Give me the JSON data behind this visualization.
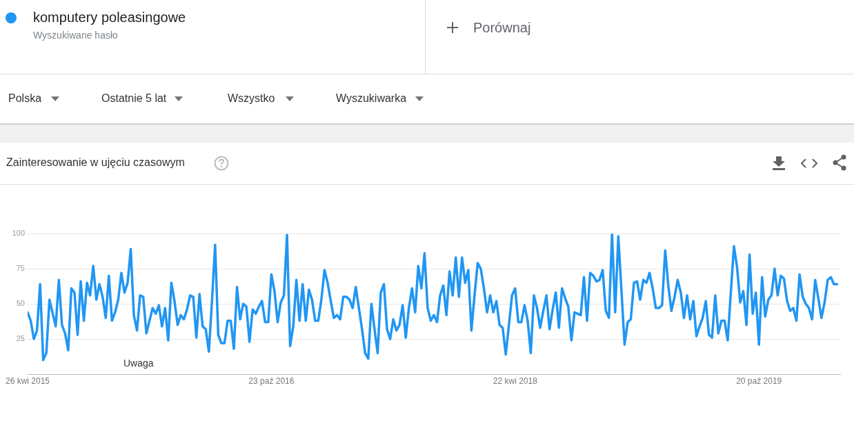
{
  "chart_data": {
    "type": "line",
    "title": "Zainteresowanie w ujęciu czasowym",
    "series": [
      {
        "name": "komputery poleasingowe",
        "color": "#2196f3",
        "x": [
          "2015-04-26",
          "2015-05-03",
          "2015-05-10",
          "2015-05-17",
          "2015-05-24",
          "2015-05-31",
          "2015-06-07",
          "2015-06-14",
          "2015-06-28",
          "2015-07-05",
          "2015-07-12",
          "2015-07-19",
          "2015-07-26",
          "2015-08-02",
          "2015-08-09",
          "2015-08-16",
          "2015-08-23",
          "2015-08-30",
          "2015-09-06",
          "2015-09-13",
          "2015-09-20",
          "2015-09-27",
          "2015-10-04",
          "2015-10-11",
          "2015-10-18",
          "2015-10-25",
          "2015-11-01",
          "2015-11-08",
          "2015-11-15",
          "2015-11-22",
          "2015-11-29",
          "2015-12-06",
          "2015-12-13",
          "2015-12-20",
          "2015-12-27",
          "2016-01-03",
          "2016-01-10",
          "2016-01-17",
          "2016-01-24",
          "2016-01-31",
          "2016-02-07",
          "2016-02-14",
          "2016-02-21",
          "2016-02-28",
          "2016-03-06",
          "2016-03-13",
          "2016-03-20",
          "2016-03-27",
          "2016-04-03",
          "2016-04-10",
          "2016-04-17",
          "2016-04-24",
          "2016-05-01",
          "2016-05-08",
          "2016-05-15",
          "2016-05-22",
          "2016-05-29",
          "2016-06-05",
          "2016-06-12",
          "2016-06-19",
          "2016-06-26",
          "2016-07-03",
          "2016-07-10",
          "2016-07-17",
          "2016-07-24",
          "2016-07-31",
          "2016-08-07",
          "2016-08-14",
          "2016-08-21",
          "2016-08-28",
          "2016-09-04",
          "2016-09-11",
          "2016-09-18",
          "2016-09-25",
          "2016-10-02",
          "2016-10-09",
          "2016-10-16",
          "2016-10-23",
          "2016-10-30",
          "2016-11-06",
          "2016-11-13",
          "2016-11-20",
          "2016-11-27",
          "2016-12-04",
          "2016-12-11",
          "2016-12-18",
          "2016-12-25",
          "2017-01-01",
          "2017-01-08",
          "2017-01-15",
          "2017-01-22",
          "2017-01-29",
          "2017-02-05",
          "2017-02-12",
          "2017-02-19",
          "2017-02-26",
          "2017-03-05",
          "2017-03-12",
          "2017-03-19",
          "2017-03-26",
          "2017-04-02",
          "2017-04-09",
          "2017-04-16",
          "2017-04-23",
          "2017-04-30",
          "2017-05-07",
          "2017-05-14",
          "2017-05-21",
          "2017-05-28",
          "2017-06-04",
          "2017-06-11",
          "2017-06-18",
          "2017-06-25",
          "2017-07-02",
          "2017-07-09",
          "2017-07-16",
          "2017-07-23",
          "2017-07-30",
          "2017-08-06",
          "2017-08-13",
          "2017-08-20",
          "2017-08-27",
          "2017-09-03",
          "2017-09-10",
          "2017-09-17",
          "2017-09-24",
          "2017-10-01",
          "2017-10-08",
          "2017-10-15",
          "2017-10-22",
          "2017-10-29",
          "2017-11-05",
          "2017-11-12",
          "2017-11-19",
          "2017-11-26",
          "2017-12-03",
          "2017-12-10",
          "2017-12-17",
          "2017-12-24",
          "2017-12-31",
          "2018-01-07",
          "2018-01-14",
          "2018-01-21",
          "2018-01-28",
          "2018-02-04",
          "2018-02-11",
          "2018-02-18",
          "2018-02-25",
          "2018-03-04",
          "2018-03-11",
          "2018-03-18",
          "2018-03-25",
          "2018-04-01",
          "2018-04-08",
          "2018-04-15",
          "2018-04-22",
          "2018-04-29",
          "2018-05-06",
          "2018-05-13",
          "2018-05-20",
          "2018-05-27",
          "2018-06-03",
          "2018-06-10",
          "2018-06-17",
          "2018-06-24",
          "2018-07-01",
          "2018-07-08",
          "2018-07-15",
          "2018-07-22",
          "2018-07-29",
          "2018-08-05",
          "2018-08-12",
          "2018-08-19",
          "2018-08-26",
          "2018-09-02",
          "2018-09-09",
          "2018-09-16",
          "2018-09-23",
          "2018-09-30",
          "2018-10-07",
          "2018-10-14",
          "2018-10-21",
          "2018-10-28",
          "2018-11-04",
          "2018-11-11",
          "2018-11-18",
          "2018-11-25",
          "2018-12-02",
          "2018-12-09",
          "2018-12-16",
          "2018-12-23",
          "2018-12-30",
          "2019-01-06",
          "2019-01-13",
          "2019-01-20",
          "2019-01-27",
          "2019-02-03",
          "2019-02-10",
          "2019-02-17",
          "2019-02-24",
          "2019-03-03",
          "2019-03-10",
          "2019-03-17",
          "2019-03-24",
          "2019-03-31",
          "2019-04-07",
          "2019-04-14",
          "2019-04-21",
          "2019-04-28",
          "2019-05-05",
          "2019-05-12",
          "2019-05-19",
          "2019-05-26",
          "2019-06-02",
          "2019-06-09",
          "2019-06-16",
          "2019-06-23",
          "2019-06-30",
          "2019-07-07",
          "2019-07-14",
          "2019-07-21",
          "2019-07-28",
          "2019-08-04",
          "2019-08-11",
          "2019-08-18",
          "2019-08-25",
          "2019-09-01",
          "2019-09-08",
          "2019-09-15",
          "2019-09-22",
          "2019-09-29",
          "2019-10-06",
          "2019-10-13",
          "2019-10-20",
          "2019-10-27",
          "2019-11-03",
          "2019-11-10",
          "2019-11-17",
          "2019-11-24",
          "2019-12-01",
          "2019-12-08",
          "2019-12-15",
          "2019-12-22",
          "2019-12-29",
          "2020-01-05",
          "2020-01-12",
          "2020-01-19",
          "2020-01-26",
          "2020-02-02",
          "2020-02-09",
          "2020-02-16",
          "2020-02-23",
          "2020-03-01",
          "2020-03-08",
          "2020-03-15",
          "2020-03-22",
          "2020-03-29",
          "2020-04-05",
          "2020-04-12"
        ],
        "values": [
          44,
          38,
          25,
          31,
          64,
          10,
          15,
          53,
          34,
          67,
          35,
          29,
          17,
          61,
          58,
          28,
          66,
          38,
          65,
          56,
          77,
          53,
          64,
          55,
          40,
          70,
          38,
          44,
          53,
          72,
          58,
          65,
          89,
          42,
          31,
          56,
          55,
          29,
          38,
          47,
          43,
          49,
          34,
          47,
          24,
          65,
          52,
          35,
          42,
          39,
          46,
          56,
          55,
          26,
          57,
          34,
          32,
          16,
          52,
          92,
          28,
          22,
          22,
          38,
          38,
          18,
          62,
          39,
          50,
          48,
          23,
          46,
          43,
          48,
          52,
          37,
          37,
          71,
          59,
          37,
          51,
          56,
          99,
          20,
          34,
          67,
          38,
          64,
          38,
          60,
          53,
          38,
          38,
          53,
          74,
          65,
          52,
          40,
          42,
          39,
          55,
          55,
          53,
          47,
          62,
          47,
          32,
          15,
          11,
          50,
          32,
          15,
          58,
          64,
          32,
          25,
          39,
          31,
          35,
          49,
          26,
          47,
          61,
          44,
          77,
          61,
          86,
          47,
          38,
          42,
          37,
          56,
          63,
          42,
          73,
          56,
          83,
          55,
          83,
          65,
          74,
          31,
          56,
          79,
          75,
          61,
          44,
          56,
          44,
          52,
          35,
          33,
          14,
          35,
          56,
          61,
          37,
          37,
          49,
          38,
          15,
          56,
          47,
          33,
          45,
          56,
          32,
          46,
          58,
          33,
          61,
          54,
          48,
          24,
          44,
          43,
          42,
          69,
          38,
          72,
          70,
          66,
          67,
          74,
          45,
          40,
          100,
          44,
          98,
          60,
          21,
          37,
          39,
          65,
          66,
          53,
          67,
          65,
          72,
          61,
          47,
          47,
          49,
          88,
          63,
          45,
          55,
          67,
          58,
          40,
          56,
          39,
          52,
          27,
          34,
          40,
          52,
          28,
          26,
          56,
          29,
          38,
          38,
          24,
          58,
          91,
          76,
          51,
          59,
          35,
          85,
          43,
          58,
          21,
          69,
          41,
          53,
          56,
          75,
          56,
          70,
          68,
          52,
          45,
          47,
          38,
          71,
          55,
          50,
          47,
          39,
          67,
          54,
          40,
          51,
          67,
          69,
          64,
          64
        ]
      }
    ],
    "xlim": [
      "2015-04-26",
      "2020-04-19"
    ],
    "xticks": [
      {
        "value": "2015-04-26",
        "label": "26 kwi 2015"
      },
      {
        "value": "2016-10-23",
        "label": "23 paź 2016"
      },
      {
        "value": "2018-04-22",
        "label": "22 kwi 2018"
      },
      {
        "value": "2019-10-20",
        "label": "20 paź 2019"
      }
    ],
    "ylim": [
      0,
      100
    ],
    "yticks": [
      25,
      50,
      75,
      100
    ],
    "grid": "y",
    "legend": "top left",
    "marker": "none",
    "line_style": "solid",
    "annotations": [
      "Wyszukiwane hasło",
      "Porównaj",
      "Polska",
      "Ostatnie 5 lat",
      "Wszystko",
      "Wyszukiwarka",
      "Uwaga"
    ]
  }
}
